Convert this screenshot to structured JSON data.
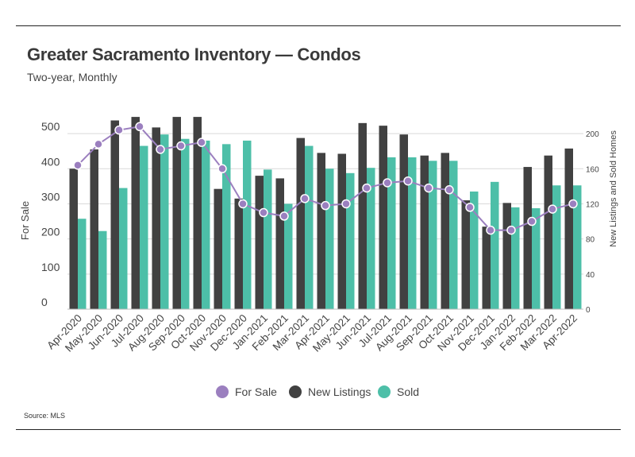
{
  "header": {
    "title": "Greater Sacramento Inventory — Condos",
    "subtitle": "Two-year, Monthly"
  },
  "footer": {
    "source": "Source:  MLS"
  },
  "colors": {
    "for_sale": "#9b7fbf",
    "new_listings": "#414141",
    "sold": "#4dbfa8"
  },
  "chart_data": {
    "type": "bar",
    "title": "Greater Sacramento Inventory — Condos",
    "subtitle": "Two-year, Monthly",
    "categories": [
      "Apr-2020",
      "May-2020",
      "Jun-2020",
      "Jul-2020",
      "Aug-2020",
      "Sep-2020",
      "Oct-2020",
      "Nov-2020",
      "Dec-2020",
      "Jan-2021",
      "Feb-2021",
      "Mar-2021",
      "Apr-2021",
      "May-2021",
      "Jun-2021",
      "Jul-2021",
      "Aug-2021",
      "Sep-2021",
      "Oct-2021",
      "Nov-2021",
      "Dec-2021",
      "Jan-2022",
      "Feb-2022",
      "Mar-2022",
      "Apr-2022"
    ],
    "ylabel": "For Sale",
    "y2label": "New Listings and Sold Homes",
    "ylim": [
      0,
      550
    ],
    "yticks": [
      0,
      100,
      200,
      300,
      400,
      500
    ],
    "y2lim": [
      0,
      220
    ],
    "y2ticks": [
      0,
      40,
      80,
      120,
      160,
      200
    ],
    "legend_position": "bottom-center",
    "series": [
      {
        "name": "For Sale",
        "type": "line",
        "axis": "left",
        "values": [
          410,
          470,
          510,
          520,
          455,
          465,
          475,
          400,
          300,
          275,
          265,
          315,
          295,
          300,
          345,
          360,
          365,
          345,
          340,
          290,
          225,
          225,
          250,
          285,
          300
        ]
      },
      {
        "name": "New Listings",
        "type": "bar",
        "axis": "right",
        "values": [
          160,
          182,
          215,
          219,
          207,
          219,
          219,
          137,
          126,
          152,
          149,
          195,
          178,
          177,
          212,
          209,
          199,
          175,
          178,
          124,
          94,
          121,
          162,
          175,
          183
        ]
      },
      {
        "name": "Sold",
        "type": "bar",
        "axis": "right",
        "values": [
          103,
          89,
          138,
          186,
          199,
          194,
          192,
          188,
          192,
          159,
          120,
          186,
          160,
          155,
          161,
          173,
          173,
          169,
          169,
          134,
          145,
          116,
          115,
          141,
          141
        ]
      }
    ]
  }
}
